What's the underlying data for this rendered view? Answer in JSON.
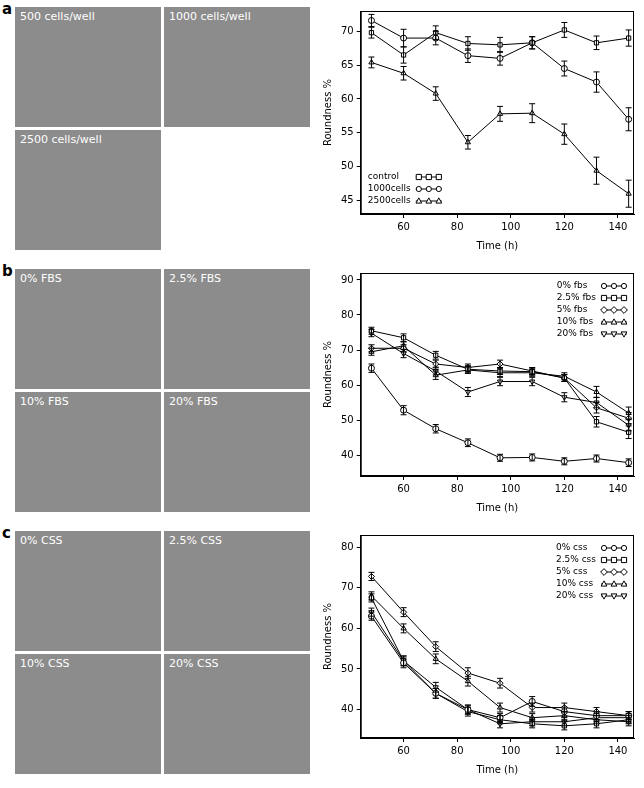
{
  "chart_data": [
    {
      "type": "line",
      "title": "a",
      "annotations": [
        "500 cells/well",
        "1000 cells/well",
        "2500 cells/well"
      ],
      "x_label": "Time (h)",
      "y_label": "Roundness %",
      "x": [
        48,
        60,
        72,
        84,
        96,
        108,
        120,
        132,
        144
      ],
      "xlim": [
        44,
        146
      ],
      "xticks": [
        60,
        80,
        100,
        120,
        140
      ],
      "ylim": [
        43,
        73
      ],
      "yticks": [
        45,
        50,
        55,
        60,
        65,
        70
      ],
      "grid": false,
      "legend": "lower left",
      "series": [
        {
          "name": "control",
          "color": "#000000",
          "marker": "square",
          "values": [
            69.8,
            66.5,
            69.8,
            68.2,
            68.0,
            68.3,
            70.2,
            68.3,
            69.0
          ],
          "errors": [
            0.8,
            1.2,
            1.0,
            1.0,
            1.1,
            0.9,
            1.1,
            1.0,
            1.2
          ]
        },
        {
          "name": "1000cells",
          "color": "#000000",
          "marker": "circle",
          "values": [
            71.6,
            69.0,
            69.0,
            66.4,
            66.0,
            68.3,
            64.5,
            62.5,
            57.0
          ],
          "errors": [
            0.9,
            1.3,
            1.0,
            1.0,
            1.0,
            0.9,
            1.1,
            1.5,
            1.7
          ]
        },
        {
          "name": "2500cells",
          "color": "#000000",
          "marker": "triangle",
          "values": [
            65.4,
            63.8,
            60.8,
            53.6,
            57.8,
            57.9,
            54.8,
            49.4,
            46.0
          ],
          "errors": [
            0.8,
            1.0,
            1.0,
            1.0,
            1.1,
            1.4,
            1.5,
            2.0,
            2.0
          ]
        }
      ]
    },
    {
      "type": "line",
      "title": "b",
      "annotations": [
        "0% FBS",
        "2.5% FBS",
        "10% FBS",
        "20% FBS"
      ],
      "x_label": "Time (h)",
      "y_label": "Roundness %",
      "x": [
        48,
        60,
        72,
        84,
        96,
        108,
        120,
        132,
        144
      ],
      "xlim": [
        44,
        146
      ],
      "xticks": [
        60,
        80,
        100,
        120,
        140
      ],
      "ylim": [
        34,
        92
      ],
      "yticks": [
        40,
        50,
        60,
        70,
        80,
        90
      ],
      "grid": false,
      "legend": "upper right",
      "series": [
        {
          "name": "0% fbs",
          "color": "#000000",
          "marker": "circle",
          "values": [
            64.8,
            52.8,
            47.5,
            43.5,
            39.2,
            39.3,
            38.2,
            39.0,
            37.8
          ],
          "errors": [
            1.2,
            1.3,
            1.2,
            1.1,
            1.0,
            1.0,
            1.0,
            1.0,
            1.1
          ]
        },
        {
          "name": "2.5% fbs",
          "color": "#000000",
          "marker": "square",
          "values": [
            75.5,
            73.5,
            68.5,
            64.5,
            64.0,
            63.8,
            62.0,
            49.5,
            46.5
          ],
          "errors": [
            1.0,
            1.1,
            1.1,
            1.0,
            1.0,
            1.0,
            1.0,
            1.5,
            1.8
          ]
        },
        {
          "name": "5% fbs",
          "color": "#000000",
          "marker": "diamond",
          "values": [
            70.5,
            70.5,
            66.0,
            65.0,
            66.0,
            64.0,
            62.0,
            53.5,
            50.5
          ],
          "errors": [
            1.0,
            1.0,
            1.1,
            1.0,
            1.1,
            1.0,
            1.0,
            1.5,
            1.6
          ]
        },
        {
          "name": "10% fbs",
          "color": "#000000",
          "marker": "triangle",
          "values": [
            69.5,
            71.2,
            62.8,
            64.3,
            63.5,
            63.5,
            62.5,
            58.0,
            52.0
          ],
          "errors": [
            1.0,
            1.1,
            1.2,
            1.0,
            1.1,
            1.0,
            1.0,
            1.6,
            1.7
          ]
        },
        {
          "name": "20% fbs",
          "color": "#000000",
          "marker": "triangle-down",
          "values": [
            74.8,
            69.0,
            64.0,
            58.0,
            61.0,
            61.0,
            56.5,
            55.0,
            48.5
          ],
          "errors": [
            1.0,
            1.2,
            1.1,
            1.3,
            1.2,
            1.2,
            1.3,
            1.5,
            1.6
          ]
        }
      ]
    },
    {
      "type": "line",
      "title": "c",
      "annotations": [
        "0% CSS",
        "2.5% CSS",
        "10% CSS",
        "20% CSS"
      ],
      "x_label": "Time (h)",
      "y_label": "Roundness %",
      "x": [
        48,
        60,
        72,
        84,
        96,
        108,
        120,
        132,
        144
      ],
      "xlim": [
        44,
        146
      ],
      "xticks": [
        60,
        80,
        100,
        120,
        140
      ],
      "ylim": [
        33,
        83
      ],
      "yticks": [
        40,
        50,
        60,
        70,
        80
      ],
      "grid": false,
      "legend": "upper right",
      "series": [
        {
          "name": "0% css",
          "color": "#000000",
          "marker": "circle",
          "values": [
            63.0,
            51.5,
            44.0,
            40.0,
            38.0,
            42.0,
            39.5,
            38.5,
            38.5
          ],
          "errors": [
            1.0,
            1.2,
            1.2,
            1.1,
            1.0,
            1.2,
            1.1,
            1.0,
            1.0
          ]
        },
        {
          "name": "2.5% css",
          "color": "#000000",
          "marker": "square",
          "values": [
            67.5,
            52.0,
            44.0,
            39.5,
            37.5,
            36.5,
            36.0,
            36.5,
            37.5
          ],
          "errors": [
            1.0,
            1.2,
            1.2,
            1.1,
            1.0,
            1.0,
            1.0,
            1.0,
            1.0
          ]
        },
        {
          "name": "5% css",
          "color": "#000000",
          "marker": "diamond",
          "values": [
            72.8,
            64.0,
            55.5,
            49.0,
            46.5,
            40.5,
            40.5,
            39.5,
            38.5
          ],
          "errors": [
            1.0,
            1.1,
            1.2,
            1.3,
            1.2,
            1.1,
            1.1,
            1.0,
            1.0
          ]
        },
        {
          "name": "10% css",
          "color": "#000000",
          "marker": "triangle",
          "values": [
            68.0,
            60.0,
            52.5,
            47.0,
            40.5,
            38.0,
            38.5,
            37.5,
            37.0
          ],
          "errors": [
            1.0,
            1.1,
            1.2,
            1.2,
            1.1,
            1.0,
            1.0,
            1.0,
            1.0
          ]
        },
        {
          "name": "20% css",
          "color": "#000000",
          "marker": "triangle-down",
          "values": [
            64.0,
            52.0,
            45.5,
            40.0,
            36.5,
            37.0,
            37.0,
            38.0,
            38.0
          ],
          "errors": [
            1.0,
            1.2,
            1.2,
            1.1,
            1.0,
            1.0,
            1.0,
            1.0,
            1.0
          ]
        }
      ]
    }
  ]
}
